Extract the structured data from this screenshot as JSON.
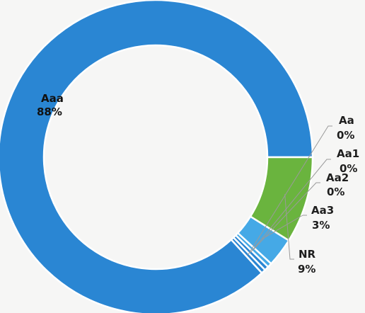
{
  "chart_data": {
    "type": "pie",
    "donut": true,
    "slices": [
      {
        "name": "Aaa",
        "value": 88,
        "percent_label": "88%",
        "color": "#2a86d3"
      },
      {
        "name": "Aa",
        "value": 0,
        "percent_label": "0%",
        "color": "#2a86d3"
      },
      {
        "name": "Aa1",
        "value": 0,
        "percent_label": "0%",
        "color": "#2a86d3"
      },
      {
        "name": "Aa2",
        "value": 0,
        "percent_label": "0%",
        "color": "#45a9e6"
      },
      {
        "name": "Aa3",
        "value": 3,
        "percent_label": "3%",
        "color": "#45a9e6"
      },
      {
        "name": "NR",
        "value": 9,
        "percent_label": "9%",
        "color": "#6ab43e"
      }
    ],
    "slice_border_color": "#ffffff",
    "leader_line_color": "#9a9a9a"
  }
}
